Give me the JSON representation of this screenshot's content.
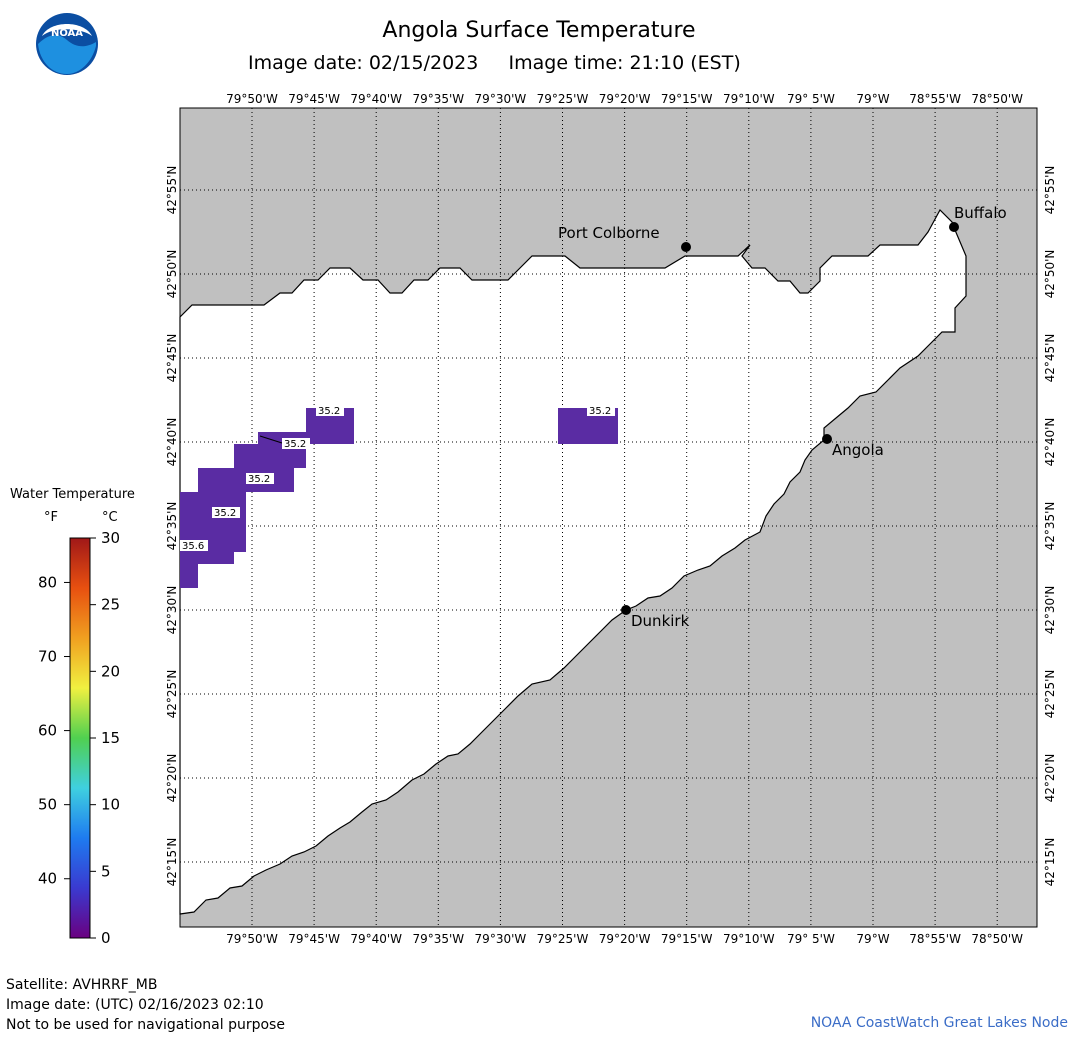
{
  "header": {
    "title": "Angola Surface Temperature",
    "subtitle": "Image date: 02/15/2023     Image time: 21:10 (EST)",
    "logo_text": "NOAA"
  },
  "map": {
    "lon_labels": [
      "79°50'W",
      "79°45'W",
      "79°40'W",
      "79°35'W",
      "79°30'W",
      "79°25'W",
      "79°20'W",
      "79°15'W",
      "79°10'W",
      "79° 5'W",
      "79°W",
      "78°55'W",
      "78°50'W"
    ],
    "lat_labels": [
      "42°55'N",
      "42°50'N",
      "42°45'N",
      "42°40'N",
      "42°35'N",
      "42°30'N",
      "42°25'N",
      "42°20'N",
      "42°15'N"
    ],
    "land_color": "#c0c0c0",
    "water_color": "#ffffff",
    "grid": "dotted",
    "cities": [
      {
        "name": "Port Colborne"
      },
      {
        "name": "Buffalo"
      },
      {
        "name": "Angola"
      },
      {
        "name": "Dunkirk"
      }
    ],
    "temperature_labels": [
      "35.2",
      "35.2",
      "35.2",
      "35.2",
      "35.6",
      "35.2"
    ],
    "pixel_color": "#5a2ca3"
  },
  "legend": {
    "title": "Water Temperature",
    "unit_f": "°F",
    "unit_c": "°C",
    "f_ticks": [
      "80",
      "70",
      "60",
      "50",
      "40"
    ],
    "c_ticks": [
      "30",
      "25",
      "20",
      "15",
      "10",
      "5",
      "0"
    ],
    "gradient": [
      "#6a0080",
      "#3a3ad0",
      "#1e7bf0",
      "#3fd0e0",
      "#50d050",
      "#f0f040",
      "#f0a020",
      "#e85010",
      "#a01818"
    ]
  },
  "footer": {
    "satellite": "Satellite: AVHRRF_MB",
    "utc_date": "Image date: (UTC) 02/16/2023  02:10",
    "disclaimer": "Not to be used for navigational purpose",
    "credit": "NOAA CoastWatch Great Lakes Node"
  }
}
